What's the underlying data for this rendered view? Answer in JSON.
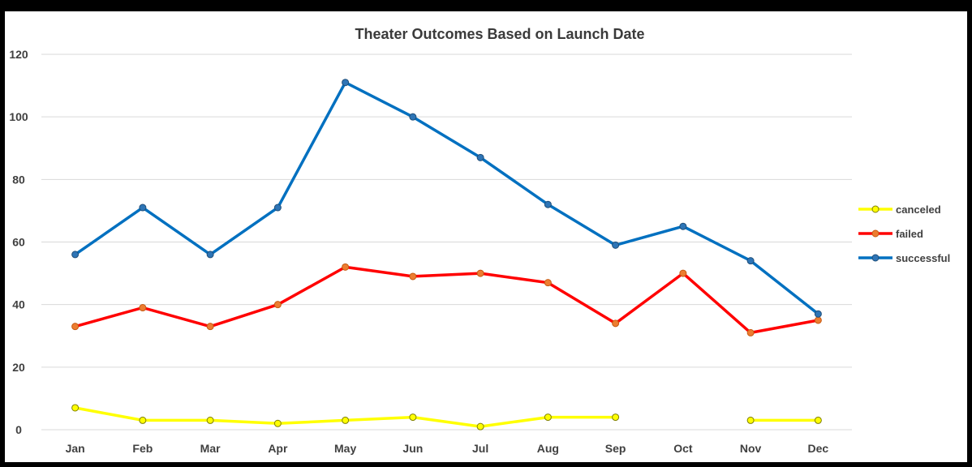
{
  "chart_data": {
    "type": "line",
    "title": "Theater Outcomes Based on Launch Date",
    "xlabel": "",
    "ylabel": "",
    "categories": [
      "Jan",
      "Feb",
      "Mar",
      "Apr",
      "May",
      "Jun",
      "Jul",
      "Aug",
      "Sep",
      "Oct",
      "Nov",
      "Dec"
    ],
    "ylim": [
      0,
      120
    ],
    "yticks": [
      0,
      20,
      40,
      60,
      80,
      100,
      120
    ],
    "grid": true,
    "legend_position": "right",
    "series": [
      {
        "name": "canceled",
        "color": "#ffff00",
        "marker_fill": "#ffff00",
        "marker_edge": "#7f7f00",
        "values": [
          7,
          3,
          3,
          2,
          3,
          4,
          1,
          4,
          4,
          null,
          3,
          3
        ]
      },
      {
        "name": "failed",
        "color": "#ff0000",
        "marker_fill": "#ed7d31",
        "marker_edge": "#c55a11",
        "values": [
          33,
          39,
          33,
          40,
          52,
          49,
          50,
          47,
          34,
          50,
          31,
          35
        ]
      },
      {
        "name": "successful",
        "color": "#0070c0",
        "marker_fill": "#2e75b6",
        "marker_edge": "#1f4e79",
        "values": [
          56,
          71,
          56,
          71,
          111,
          100,
          87,
          72,
          59,
          65,
          54,
          37
        ]
      }
    ]
  }
}
